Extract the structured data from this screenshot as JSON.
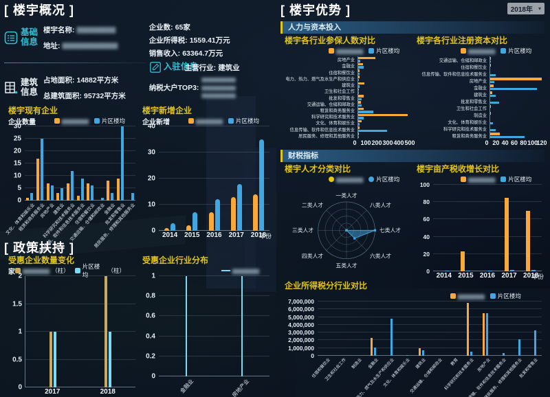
{
  "app": {
    "overview_title": "楼宇概况",
    "policy_title": "政策扶持",
    "advantage_title": "楼宇优势",
    "year": "2018年",
    "band1": "人力与资本投入",
    "band2": "财税指标"
  },
  "info": {
    "basic_label": "基础信息",
    "name_label": "楼宇名称:",
    "name_value": "▆▆▆▆▆▆▆",
    "addr_label": "地址:",
    "addr_value": "▆▆▆▆▆▆▆▆▆▆",
    "building_label": "建筑信息",
    "area_label": "占地面积:",
    "area_value": "14882平方米",
    "total_area_label": "总建筑面积:",
    "total_area_value": "95732平方米",
    "entry_label": "入驻信息",
    "company_count_label": "企业数:",
    "company_count_value": "65家",
    "income_tax_label": "企业所得税:",
    "income_tax_value": "1559.41万元",
    "sales_label": "销售收入:",
    "sales_value": "63364.7万元",
    "main_industry_label": "主营行业:",
    "main_industry_value": "建筑业",
    "top3_label": "纳税大户TOP3:",
    "top3_1": "▆▆▆▆▆▆▆▆",
    "top3_2": "▆▆▆▆▆▆▆▆",
    "top3_3": "▆▆▆▆▆▆▆▆"
  },
  "colors": {
    "orange": "#f9a83a",
    "blue": "#41a7e0",
    "tan": "#c9a95f",
    "cyan": "#7adcf2",
    "title_yellow": "#e3c418"
  },
  "chart_data": [
    {
      "id": "existing",
      "type": "bar",
      "title": "楼宇现有企业",
      "ylabel": "企业数量",
      "ylim": [
        0,
        30
      ],
      "yticks": [
        0,
        5,
        10,
        15,
        20,
        25,
        30
      ],
      "categories": [
        "文化、体育和娱乐业",
        "租赁和商务服务业",
        "房地产业",
        "建筑业",
        "科学研究和技术服务业",
        "信息传输、软件和信息技术服务业",
        "住宿和餐饮业",
        "交通运输、仓储和邮政业",
        "金融业",
        "批发和零售业",
        "居民服务、修理和其他服务业"
      ],
      "series": [
        {
          "name": "▆▆▆▆▆▆",
          "redacted": true,
          "color": "#f9a83a",
          "values": [
            1,
            17,
            7,
            3,
            7,
            2,
            7,
            0,
            8,
            9,
            0
          ]
        },
        {
          "name": "片区楼均",
          "color": "#41a7e0",
          "values": [
            3,
            25,
            6,
            5,
            12,
            9,
            6,
            1,
            3,
            30,
            3
          ]
        }
      ]
    },
    {
      "id": "new",
      "type": "bar",
      "title": "楼宇新增企业",
      "ylabel": "企业新增",
      "xlabel": "年份",
      "ylim": [
        0,
        40
      ],
      "yticks": [
        0,
        10,
        20,
        30,
        40
      ],
      "categories": [
        "2014",
        "2015",
        "2016",
        "2017",
        "2018"
      ],
      "series": [
        {
          "name": "▆▆▆▆▆▆",
          "redacted": true,
          "color": "#f9a83a",
          "values": [
            1,
            2,
            7,
            13,
            14
          ]
        },
        {
          "name": "片区楼均",
          "color": "#41a7e0",
          "values": [
            3,
            7,
            12,
            18,
            35
          ]
        }
      ]
    },
    {
      "id": "policy_count",
      "type": "bar",
      "title": "受惠企业数量变化",
      "ylabel": "家",
      "ylim": [
        0,
        2
      ],
      "yticks": [
        0,
        0.5,
        1,
        1.5,
        2
      ],
      "categories": [
        "2017",
        "2018"
      ],
      "series": [
        {
          "name": "▆▆▆▆▆▆",
          "suffix": "（柱）",
          "redacted": true,
          "color": "#c9a95f",
          "values": [
            1,
            2
          ]
        },
        {
          "name": "片区楼均",
          "suffix": "（柱）",
          "color": "#7adcf2",
          "values": [
            1,
            1
          ]
        }
      ]
    },
    {
      "id": "policy_industry",
      "type": "bar",
      "title": "受惠企业行业分布",
      "ylim": [
        0,
        1
      ],
      "yticks": [
        0,
        0.2,
        0.4,
        0.6,
        0.8,
        1
      ],
      "ytick_labels": [
        "0",
        "0.2",
        "0.4",
        "0.6",
        "0.8",
        "1"
      ],
      "categories": [
        "金融业",
        "房地产业"
      ],
      "series": [
        {
          "name": "▆▆▆▆▆▆",
          "redacted": true,
          "marker": "line",
          "color": "#7adcf2",
          "values": [
            1,
            1
          ]
        }
      ]
    },
    {
      "id": "insured",
      "type": "hbar",
      "title": "楼宇各行业参保人数对比",
      "xlim": [
        0,
        500
      ],
      "xticks": [
        0,
        100,
        200,
        300,
        400,
        500
      ],
      "categories": [
        "房地产业",
        "金融业",
        "住宿和餐饮业",
        "电力、热力、燃气及水生产和供应业",
        "建筑业",
        "卫生和社会工作",
        "批发和零售业",
        "交通运输、仓储和邮政业",
        "租赁和商务服务业",
        "科学研究和技术服务业",
        "文化、体育和娱乐业",
        "信息传输、软件和信息技术服务业",
        "居民服务、修理和其他服务业"
      ],
      "series": [
        {
          "name": "▆▆▆▆▆▆",
          "redacted": true,
          "color": "#f9a83a",
          "values": [
            165,
            45,
            12,
            15,
            57,
            8,
            50,
            25,
            55,
            480,
            30,
            12,
            2
          ]
        },
        {
          "name": "片区楼均",
          "color": "#41a7e0",
          "values": [
            20,
            50,
            10,
            3,
            15,
            5,
            30,
            35,
            145,
            55,
            10,
            280,
            1
          ]
        }
      ]
    },
    {
      "id": "capital",
      "type": "hbar",
      "title": "楼宇各行业注册资本对比",
      "xlim": [
        0,
        120
      ],
      "xticks": [
        0,
        20,
        40,
        60,
        80,
        100,
        120
      ],
      "categories": [
        "交通运输、仓储和邮政业",
        "住宿和餐饮业",
        "信息传输、软件和信息技术服务业",
        "房地产业",
        "金融业",
        "建筑业",
        "批发和零售业",
        "卫生和社会工作",
        "制造业",
        "文化、体育和娱乐业",
        "科学研究和技术服务业",
        "租赁和商务服务业"
      ],
      "series": [
        {
          "name": "▆▆▆▆▆▆",
          "redacted": true,
          "color": "#f9a83a",
          "values": [
            1,
            1,
            0,
            120,
            8,
            5,
            0,
            2,
            1,
            0,
            0,
            22
          ]
        },
        {
          "name": "片区楼均",
          "color": "#41a7e0",
          "values": [
            1,
            0,
            12,
            10,
            108,
            12,
            20,
            0,
            0,
            7,
            12,
            80
          ]
        }
      ]
    },
    {
      "id": "talent",
      "type": "radar",
      "title": "楼宇人才分类对比",
      "max": 5,
      "axes": [
        "一类人才",
        "二类人才",
        "三类人才",
        "四类人才",
        "五类人才",
        "六类人才",
        "七类人才",
        "八类人才"
      ],
      "series": [
        {
          "name": "▆▆▆▆▆▆",
          "redacted": true,
          "marker": "dot",
          "color": "#e8c50e",
          "values": [
            0,
            0,
            0,
            0,
            0,
            0,
            0,
            0
          ]
        },
        {
          "name": "片区楼均",
          "marker": "dot",
          "color": "#41a7e0",
          "values": [
            0,
            0,
            0,
            0,
            0,
            2,
            5,
            0
          ]
        }
      ]
    },
    {
      "id": "tax_growth",
      "type": "bar",
      "title": "楼宇亩产税收增长对比",
      "xlabel": "年份",
      "ylim": [
        0,
        100
      ],
      "yticks": [
        0,
        20,
        40,
        60,
        80,
        100
      ],
      "categories": [
        "2014",
        "2015",
        "2016",
        "2017",
        "2018"
      ],
      "series": [
        {
          "name": "▆▆▆▆▆▆",
          "redacted": true,
          "color": "#f9a83a",
          "values": [
            0,
            23,
            0,
            85,
            70
          ]
        },
        {
          "name": "片区楼均",
          "color": "#41a7e0",
          "values": [
            1,
            1,
            0.5,
            1.5,
            1.5
          ]
        }
      ]
    },
    {
      "id": "income_tax",
      "type": "bar",
      "title": "企业所得税分行业对比",
      "ylim": [
        0,
        7000000
      ],
      "yticks": [
        0,
        1000000,
        2000000,
        3000000,
        4000000,
        5000000,
        6000000,
        7000000
      ],
      "ytick_labels": [
        "0",
        "1,000,000",
        "2,000,000",
        "3,000,000",
        "4,000,000",
        "5,000,000",
        "6,000,000",
        "7,000,000"
      ],
      "categories": [
        "住宿和餐饮业",
        "卫生和社会工作",
        "制造业",
        "金融业",
        "电力、热力、燃气及水生产和供应业",
        "文化、体育和娱乐业",
        "建筑业",
        "交通运输、仓储和邮政业",
        "教育",
        "科学研究和技术服务业",
        "房地产业",
        "信息传输、软件和信息技术服务业",
        "居民服务、修理和其他服务业",
        "批发和零售业"
      ],
      "series": [
        {
          "name": "▆▆▆▆▆▆",
          "redacted": true,
          "color": "#f9a83a",
          "values": [
            0,
            0,
            0,
            2300000,
            0,
            0,
            1000000,
            0,
            0,
            6800000,
            5500000,
            0,
            0,
            0
          ]
        },
        {
          "name": "片区楼均",
          "color": "#41a7e0",
          "values": [
            0,
            0,
            0,
            1100000,
            4800000,
            50000,
            700000,
            0,
            0,
            500000,
            5500000,
            400000,
            2100000,
            3300000
          ]
        }
      ]
    }
  ]
}
